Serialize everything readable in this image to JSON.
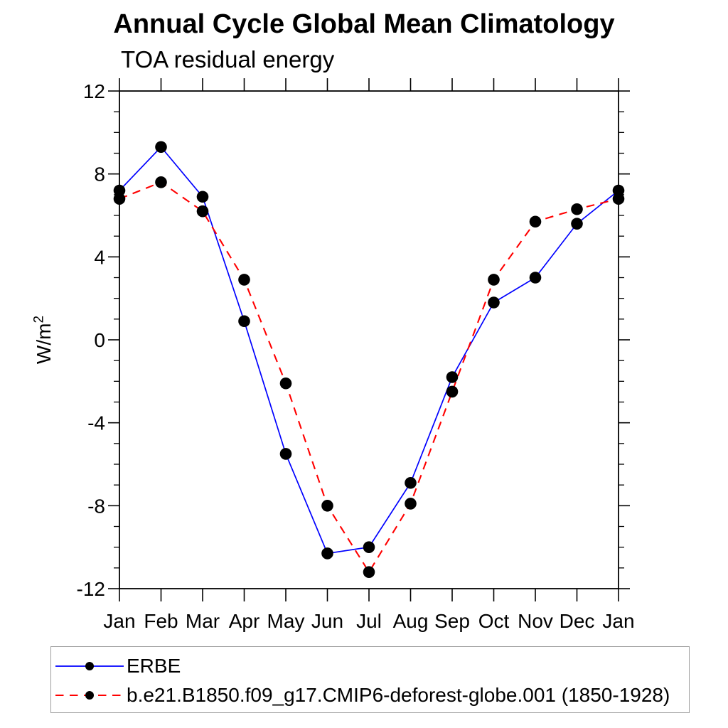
{
  "chart_data": {
    "type": "line",
    "title": "Annual Cycle Global Mean Climatology",
    "subtitle": "TOA residual energy",
    "ylabel_base": "W/m",
    "ylabel_sup": "2",
    "xlabel": "",
    "x_categories": [
      "Jan",
      "Feb",
      "Mar",
      "Apr",
      "May",
      "Jun",
      "Jul",
      "Aug",
      "Sep",
      "Oct",
      "Nov",
      "Dec",
      "Jan"
    ],
    "ylim": [
      -12,
      12
    ],
    "yticks_major": [
      12,
      8,
      4,
      0,
      -4,
      -8,
      -12
    ],
    "ytick_minor_step": 1,
    "grid": false,
    "legend_position": "bottom",
    "axis_color": "#000000",
    "marker_color": "#000000",
    "series": [
      {
        "name": "ERBE",
        "color": "#0000ff",
        "line_style": "solid",
        "marker": "filled-circle",
        "values": [
          7.2,
          9.3,
          6.9,
          0.9,
          -5.5,
          -10.3,
          -10.0,
          -6.9,
          -1.8,
          1.8,
          3.0,
          5.6,
          7.2
        ]
      },
      {
        "name": "b.e21.B1850.f09_g17.CMIP6-deforest-globe.001 (1850-1928)",
        "color": "#ff0000",
        "line_style": "dashed",
        "marker": "filled-circle",
        "values": [
          6.8,
          7.6,
          6.2,
          2.9,
          -2.1,
          -8.0,
          -11.2,
          -7.9,
          -2.5,
          2.9,
          5.7,
          6.3,
          6.8
        ]
      }
    ]
  }
}
